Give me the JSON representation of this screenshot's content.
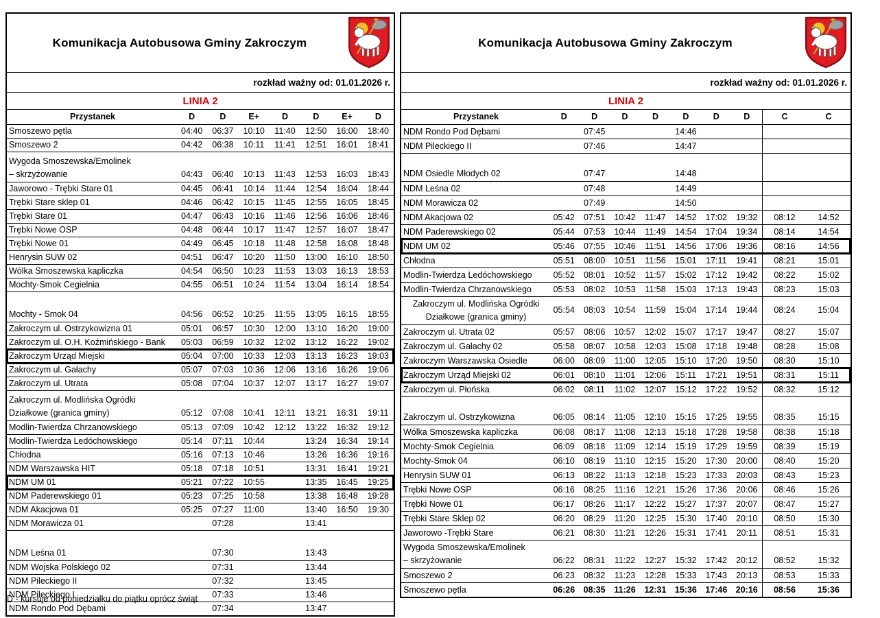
{
  "page": {
    "background": "#ffffff"
  },
  "colors": {
    "line_red": "#e00000",
    "crest_red": "#e01b22",
    "crest_halo": "#f2c021",
    "crest_flag": "#9aa0a6"
  },
  "tables": [
    {
      "id": "left",
      "title": "Komunikacja Autobusowa Gminy Zakroczym",
      "valid_from": "rozkład ważny od: 01.01.2026 r.",
      "line_label": "LINIA 2",
      "stop_header": "Przystanek",
      "day_cols": [
        "D",
        "D",
        "E+",
        "D",
        "D",
        "E+",
        "D"
      ],
      "c_cols": [],
      "footnote": "D - kursuje od poniedziałku do piątku oprócz świąt",
      "rows": [
        {
          "n": "Smoszewo pętla",
          "t": [
            "04:40",
            "06:37",
            "10:10",
            "11:40",
            "12:50",
            "16:00",
            "18:40"
          ]
        },
        {
          "n": "Smoszewo 2",
          "t": [
            "04:42",
            "06:38",
            "10:11",
            "11:41",
            "12:51",
            "16:01",
            "18:41"
          ]
        },
        {
          "n": "Wygoda Smoszewska/Emolinek",
          "n2": "– skrzyżowanie",
          "tall": true,
          "t": [
            "04:43",
            "06:40",
            "10:13",
            "11:43",
            "12:53",
            "16:03",
            "18:43"
          ]
        },
        {
          "n": "Jaworowo - Trębki Stare 01",
          "t": [
            "04:45",
            "06:41",
            "10:14",
            "11:44",
            "12:54",
            "16:04",
            "18:44"
          ]
        },
        {
          "n": "Trębki Stare sklep 01",
          "t": [
            "04:46",
            "06:42",
            "10:15",
            "11:45",
            "12:55",
            "16:05",
            "18:45"
          ]
        },
        {
          "n": "Trębki Stare 01",
          "t": [
            "04:47",
            "06:43",
            "10:16",
            "11:46",
            "12:56",
            "16:06",
            "18:46"
          ]
        },
        {
          "n": "Trębki Nowe OSP",
          "t": [
            "04:48",
            "06:44",
            "10:17",
            "11:47",
            "12:57",
            "16:07",
            "18:47"
          ]
        },
        {
          "n": "Trębki Nowe 01",
          "t": [
            "04:49",
            "06:45",
            "10:18",
            "11:48",
            "12:58",
            "16:08",
            "18:48"
          ]
        },
        {
          "n": "Henrysin SUW 02",
          "t": [
            "04:51",
            "06:47",
            "10:20",
            "11:50",
            "13:00",
            "16:10",
            "18:50"
          ]
        },
        {
          "n": "Wólka Smoszewska kapliczka",
          "t": [
            "04:54",
            "06:50",
            "10:23",
            "11:53",
            "13:03",
            "16:13",
            "18:53"
          ]
        },
        {
          "n": "Mochty-Smok Cegielnia",
          "t": [
            "04:55",
            "06:51",
            "10:24",
            "11:54",
            "13:04",
            "16:14",
            "18:54"
          ]
        },
        {
          "n": "Mochty - Smok 04",
          "tall": true,
          "t": [
            "04:56",
            "06:52",
            "10:25",
            "11:55",
            "13:05",
            "16:15",
            "18:55"
          ]
        },
        {
          "n": "Zakroczym ul. Ostrzykowizna 01",
          "t": [
            "05:01",
            "06:57",
            "10:30",
            "12:00",
            "13:10",
            "16:20",
            "19:00"
          ]
        },
        {
          "n": "Zakroczym ul. O.H. Koźmińskiego - Bank",
          "t": [
            "05:03",
            "06:59",
            "10:32",
            "12:02",
            "13:12",
            "16:22",
            "19:02"
          ]
        },
        {
          "n": "Zakroczym Urząd Miejski",
          "boxed": true,
          "t": [
            "05:04",
            "07:00",
            "10:33",
            "12:03",
            "13:13",
            "16:23",
            "19:03"
          ]
        },
        {
          "n": "Zakroczym ul. Gałachy",
          "t": [
            "05:07",
            "07:03",
            "10:36",
            "12:06",
            "13:16",
            "16:26",
            "19:06"
          ]
        },
        {
          "n": "Zakroczym ul. Utrata",
          "t": [
            "05:08",
            "07:04",
            "10:37",
            "12:07",
            "13:17",
            "16:27",
            "19:07"
          ]
        },
        {
          "n": "Zakroczym ul. Modlińska Ogródki",
          "n2": "Działkowe (granica gminy)",
          "tall": true,
          "t": [
            "05:12",
            "07:08",
            "10:41",
            "12:11",
            "13:21",
            "16:31",
            "19:11"
          ]
        },
        {
          "n": "Modlin-Twierdza Chrzanowskiego",
          "t": [
            "05:13",
            "07:09",
            "10:42",
            "12:12",
            "13:22",
            "16:32",
            "19:12"
          ]
        },
        {
          "n": "Modlin-Twierdza Ledóchowskiego",
          "t": [
            "05:14",
            "07:11",
            "10:44",
            "",
            "13:24",
            "16:34",
            "19:14"
          ]
        },
        {
          "n": "Chłodna",
          "t": [
            "05:16",
            "07:13",
            "10:46",
            "",
            "13:26",
            "16:36",
            "19:16"
          ]
        },
        {
          "n": "NDM Warszawska HIT",
          "t": [
            "05:18",
            "07:18",
            "10:51",
            "",
            "13:31",
            "16:41",
            "19:21"
          ]
        },
        {
          "n": "NDM UM 01",
          "boxed": true,
          "t": [
            "05:21",
            "07:22",
            "10:55",
            "",
            "13:35",
            "16:45",
            "19:25"
          ]
        },
        {
          "n": "NDM Paderewskiego 01",
          "t": [
            "05:23",
            "07:25",
            "10:58",
            "",
            "13:38",
            "16:48",
            "19:28"
          ]
        },
        {
          "n": "NDM Akacjowa 01",
          "t": [
            "05:25",
            "07:27",
            "11:00",
            "",
            "13:40",
            "16:50",
            "19:30"
          ]
        },
        {
          "n": "NDM Morawicza 01",
          "t": [
            "",
            "07:28",
            "",
            "",
            "13:41",
            "",
            ""
          ]
        },
        {
          "n": "NDM Leśna 01",
          "tall": true,
          "t": [
            "",
            "07:30",
            "",
            "",
            "13:43",
            "",
            ""
          ]
        },
        {
          "n": "NDM Wojska Polskiego 02",
          "t": [
            "",
            "07:31",
            "",
            "",
            "13:44",
            "",
            ""
          ]
        },
        {
          "n": "NDM Pileckiego II",
          "t": [
            "",
            "07:32",
            "",
            "",
            "13:45",
            "",
            ""
          ]
        },
        {
          "n": "NDM Pileckiego I",
          "t": [
            "",
            "07:33",
            "",
            "",
            "13:46",
            "",
            ""
          ]
        },
        {
          "n": "NDM Rondo Pod Dębami",
          "t": [
            "",
            "07:34",
            "",
            "",
            "13:47",
            "",
            ""
          ]
        }
      ]
    },
    {
      "id": "right",
      "title": "Komunikacja Autobusowa Gminy Zakroczym",
      "valid_from": "rozkład ważny od: 01.01.2026 r.",
      "line_label": "LINIA 2",
      "stop_header": "Przystanek",
      "day_cols": [
        "D",
        "D",
        "D",
        "D",
        "D",
        "D",
        "D"
      ],
      "c_cols": [
        "C",
        "C"
      ],
      "footnote": "",
      "rows": [
        {
          "n": "NDM Rondo Pod Dębami",
          "t": [
            "",
            "07:45",
            "",
            "",
            "14:46",
            "",
            ""
          ],
          "c": [
            "",
            ""
          ]
        },
        {
          "n": "NDM Pileckiego II",
          "t": [
            "",
            "07:46",
            "",
            "",
            "14:47",
            "",
            ""
          ],
          "c": [
            "",
            ""
          ]
        },
        {
          "n": "NDM Osiedle Młodych 02",
          "tall": true,
          "t": [
            "",
            "07:47",
            "",
            "",
            "14:48",
            "",
            ""
          ],
          "c": [
            "",
            ""
          ]
        },
        {
          "n": "NDM Leśna 02",
          "t": [
            "",
            "07:48",
            "",
            "",
            "14:49",
            "",
            ""
          ],
          "c": [
            "",
            ""
          ]
        },
        {
          "n": "NDM Morawicza 02",
          "t": [
            "",
            "07:49",
            "",
            "",
            "14:50",
            "",
            ""
          ],
          "c": [
            "",
            ""
          ]
        },
        {
          "n": "NDM Akacjowa 02",
          "t": [
            "05:42",
            "07:51",
            "10:42",
            "11:47",
            "14:52",
            "17:02",
            "19:32"
          ],
          "c": [
            "08:12",
            "14:52"
          ]
        },
        {
          "n": "NDM Paderewskiego 02",
          "t": [
            "05:44",
            "07:53",
            "10:44",
            "11:49",
            "14:54",
            "17:04",
            "19:34"
          ],
          "c": [
            "08:14",
            "14:54"
          ]
        },
        {
          "n": "NDM UM 02",
          "boxed": true,
          "t": [
            "05:46",
            "07:55",
            "10:46",
            "11:51",
            "14:56",
            "17:06",
            "19:36"
          ],
          "c": [
            "08:16",
            "14:56"
          ]
        },
        {
          "n": "Chłodna",
          "t": [
            "05:51",
            "08:00",
            "10:51",
            "11:56",
            "15:01",
            "17:11",
            "19:41"
          ],
          "c": [
            "08:21",
            "15:01"
          ]
        },
        {
          "n": "Modlin-Twierdza Ledóchowskiego",
          "t": [
            "05:52",
            "08:01",
            "10:52",
            "11:57",
            "15:02",
            "17:12",
            "19:42"
          ],
          "c": [
            "08:22",
            "15:02"
          ]
        },
        {
          "n": "Modlin-Twierdza Chrzanowskiego",
          "t": [
            "05:53",
            "08:02",
            "10:53",
            "11:58",
            "15:03",
            "17:13",
            "19:43"
          ],
          "c": [
            "08:23",
            "15:03"
          ]
        },
        {
          "n": "Zakroczym ul. Modlińska Ogródki",
          "n2": "Działkowe (granica gminy)",
          "tall": true,
          "vc": true,
          "t": [
            "05:54",
            "08:03",
            "10:54",
            "11:59",
            "15:04",
            "17:14",
            "19:44"
          ],
          "c": [
            "08:24",
            "15:04"
          ]
        },
        {
          "n": "Zakroczym ul. Utrata 02",
          "t": [
            "05:57",
            "08:06",
            "10:57",
            "12:02",
            "15:07",
            "17:17",
            "19:47"
          ],
          "c": [
            "08:27",
            "15:07"
          ]
        },
        {
          "n": "Zakroczym ul. Gałachy 02",
          "t": [
            "05:58",
            "08:07",
            "10:58",
            "12:03",
            "15:08",
            "17:18",
            "19:48"
          ],
          "c": [
            "08:28",
            "15:08"
          ]
        },
        {
          "n": "Zakroczym Warszawska Osiedle",
          "t": [
            "06:00",
            "08:09",
            "11:00",
            "12:05",
            "15:10",
            "17:20",
            "19:50"
          ],
          "c": [
            "08:30",
            "15:10"
          ]
        },
        {
          "n": "Zakroczym Urząd Miejski 02",
          "boxed": true,
          "t": [
            "06:01",
            "08:10",
            "11:01",
            "12:06",
            "15:11",
            "17:21",
            "19:51"
          ],
          "c": [
            "08:31",
            "15:11"
          ]
        },
        {
          "n": "Zakroczym ul. Płońska",
          "t": [
            "06:02",
            "08:11",
            "11:02",
            "12:07",
            "15:12",
            "17:22",
            "19:52"
          ],
          "c": [
            "08:32",
            "15:12"
          ]
        },
        {
          "n": "Zakroczym ul. Ostrzykowizna",
          "tall": true,
          "t": [
            "06:05",
            "08:14",
            "11:05",
            "12:10",
            "15:15",
            "17:25",
            "19:55"
          ],
          "c": [
            "08:35",
            "15:15"
          ]
        },
        {
          "n": "Wólka Smoszewska kapliczka",
          "t": [
            "06:08",
            "08:17",
            "11:08",
            "12:13",
            "15:18",
            "17:28",
            "19:58"
          ],
          "c": [
            "08:38",
            "15:18"
          ]
        },
        {
          "n": "Mochty-Smok Cegielnia",
          "t": [
            "06:09",
            "08:18",
            "11:09",
            "12:14",
            "15:19",
            "17:29",
            "19:59"
          ],
          "c": [
            "08:39",
            "15:19"
          ]
        },
        {
          "n": "Mochty-Smok 04",
          "t": [
            "06:10",
            "08:19",
            "11:10",
            "12:15",
            "15:20",
            "17:30",
            "20:00"
          ],
          "c": [
            "08:40",
            "15:20"
          ]
        },
        {
          "n": "Henrysin SUW 01",
          "t": [
            "06:13",
            "08:22",
            "11:13",
            "12:18",
            "15:23",
            "17:33",
            "20:03"
          ],
          "c": [
            "08:43",
            "15:23"
          ]
        },
        {
          "n": "Trębki Nowe OSP",
          "t": [
            "06:16",
            "08:25",
            "11:16",
            "12:21",
            "15:26",
            "17:36",
            "20:06"
          ],
          "c": [
            "08:46",
            "15:26"
          ]
        },
        {
          "n": "Trębki Nowe 01",
          "t": [
            "06:17",
            "08:26",
            "11:17",
            "12:22",
            "15:27",
            "17:37",
            "20:07"
          ],
          "c": [
            "08:47",
            "15:27"
          ]
        },
        {
          "n": "Trębki Stare Sklep 02",
          "t": [
            "06:20",
            "08:29",
            "11:20",
            "12:25",
            "15:30",
            "17:40",
            "20:10"
          ],
          "c": [
            "08:50",
            "15:30"
          ]
        },
        {
          "n": "Jaworowo -Trębki Stare",
          "t": [
            "06:21",
            "08:30",
            "11:21",
            "12:26",
            "15:31",
            "17:41",
            "20:11"
          ],
          "c": [
            "08:51",
            "15:31"
          ]
        },
        {
          "n": "Wygoda Smoszewska/Emolinek",
          "n2": "– skrzyżowanie",
          "tall": true,
          "t": [
            "06:22",
            "08:31",
            "11:22",
            "12:27",
            "15:32",
            "17:42",
            "20:12"
          ],
          "c": [
            "08:52",
            "15:32"
          ]
        },
        {
          "n": "Smoszewo 2",
          "t": [
            "06:23",
            "08:32",
            "11:23",
            "12:28",
            "15:33",
            "17:43",
            "20:13"
          ],
          "c": [
            "08:53",
            "15:33"
          ]
        },
        {
          "n": "Smoszewo pętla",
          "bold": true,
          "t": [
            "06:26",
            "08:35",
            "11:26",
            "12:31",
            "15:36",
            "17:46",
            "20:16"
          ],
          "c": [
            "08:56",
            "15:36"
          ]
        }
      ]
    }
  ]
}
